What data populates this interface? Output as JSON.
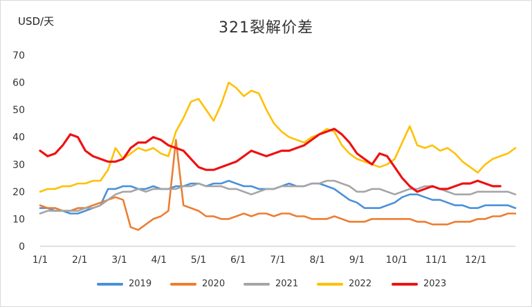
{
  "unit_label": "USD/天",
  "chart_data": {
    "type": "line",
    "title": "321裂解价差",
    "ylabel": "USD/天",
    "ylim": [
      0,
      70
    ],
    "y_ticks": [
      0,
      10,
      20,
      30,
      40,
      50,
      60,
      70
    ],
    "x_ticks": [
      "1/1",
      "2/1",
      "3/1",
      "4/1",
      "5/1",
      "6/1",
      "7/1",
      "8/1",
      "9/1",
      "10/1",
      "11/1",
      "12/1"
    ],
    "grid": false,
    "legend_position": "bottom",
    "series": [
      {
        "name": "2019",
        "color": "#4a90d9",
        "values": [
          14,
          14,
          13,
          13,
          12,
          12,
          13,
          14,
          15,
          21,
          21,
          22,
          22,
          21,
          21,
          22,
          21,
          21,
          22,
          22,
          23,
          23,
          22,
          23,
          23,
          24,
          23,
          22,
          22,
          21,
          21,
          21,
          22,
          23,
          22,
          22,
          23,
          23,
          22,
          21,
          19,
          17,
          16,
          14,
          14,
          14,
          15,
          16,
          18,
          19,
          19,
          18,
          17,
          17,
          16,
          15,
          15,
          14,
          14,
          15,
          15,
          15,
          15,
          14
        ]
      },
      {
        "name": "2020",
        "color": "#ed7d31",
        "values": [
          15,
          14,
          14,
          13,
          13,
          14,
          14,
          15,
          16,
          17,
          18,
          17,
          7,
          6,
          8,
          10,
          11,
          13,
          39,
          15,
          14,
          13,
          11,
          11,
          10,
          10,
          11,
          12,
          11,
          12,
          12,
          11,
          12,
          12,
          11,
          11,
          10,
          10,
          10,
          11,
          10,
          9,
          9,
          9,
          10,
          10,
          10,
          10,
          10,
          10,
          9,
          9,
          8,
          8,
          8,
          9,
          9,
          9,
          10,
          10,
          11,
          11,
          12,
          12
        ]
      },
      {
        "name": "2021",
        "color": "#a5a5a5",
        "values": [
          12,
          13,
          13,
          13,
          13,
          13,
          14,
          14,
          15,
          17,
          19,
          20,
          20,
          21,
          20,
          21,
          21,
          21,
          21,
          22,
          22,
          23,
          22,
          22,
          22,
          21,
          21,
          20,
          19,
          20,
          21,
          21,
          22,
          22,
          22,
          22,
          23,
          23,
          24,
          24,
          23,
          22,
          20,
          20,
          21,
          21,
          20,
          19,
          20,
          21,
          21,
          22,
          22,
          21,
          20,
          19,
          19,
          19,
          20,
          20,
          20,
          20,
          20,
          19
        ]
      },
      {
        "name": "2022",
        "color": "#ffc000",
        "values": [
          20,
          21,
          21,
          22,
          22,
          23,
          23,
          24,
          24,
          28,
          36,
          32,
          34,
          36,
          35,
          36,
          34,
          33,
          42,
          47,
          53,
          54,
          50,
          46,
          52,
          60,
          58,
          55,
          57,
          56,
          50,
          45,
          42,
          40,
          39,
          38,
          40,
          41,
          43,
          42,
          37,
          34,
          32,
          31,
          30,
          29,
          30,
          32,
          38,
          44,
          37,
          36,
          37,
          35,
          36,
          34,
          31,
          29,
          27,
          30,
          32,
          33,
          34,
          36
        ]
      },
      {
        "name": "2023",
        "color": "#ee1111",
        "values": [
          35,
          33,
          34,
          37,
          41,
          40,
          35,
          33,
          32,
          31,
          31,
          32,
          36,
          38,
          38,
          40,
          39,
          37,
          36,
          35,
          32,
          29,
          28,
          28,
          29,
          30,
          31,
          33,
          35,
          34,
          33,
          34,
          35,
          35,
          36,
          37,
          39,
          41,
          42,
          43,
          41,
          38,
          34,
          32,
          30,
          34,
          33,
          29,
          25,
          22,
          20,
          21,
          22,
          21,
          21,
          22,
          23,
          23,
          24,
          23,
          22,
          22
        ]
      }
    ]
  }
}
